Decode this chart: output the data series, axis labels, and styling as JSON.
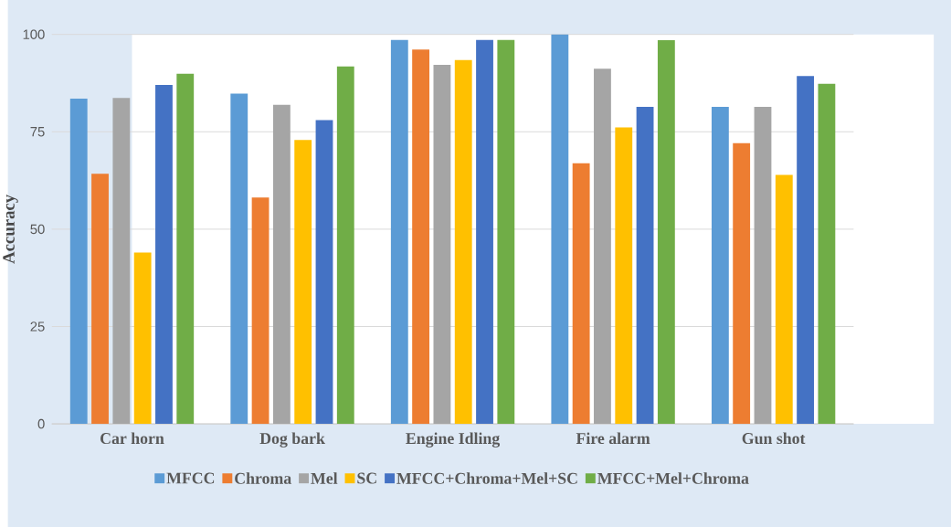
{
  "chart_data": {
    "type": "bar",
    "ylabel": "Accuracy",
    "categories": [
      "Car horn",
      "Dog bark",
      "Engine Idling",
      "Fire alarm",
      "Gun shot"
    ],
    "series": [
      {
        "name": "MFCC",
        "color": "#5b9bd5",
        "values": [
          83.5,
          84.8,
          98.6,
          100,
          81.4
        ]
      },
      {
        "name": "Chroma",
        "color": "#ed7d31",
        "values": [
          64.2,
          58.1,
          96.1,
          66.9,
          72.1
        ]
      },
      {
        "name": "Mel",
        "color": "#a5a5a5",
        "values": [
          83.7,
          81.9,
          92.2,
          91.2,
          81.4
        ]
      },
      {
        "name": "SC",
        "color": "#ffc000",
        "values": [
          44.0,
          72.9,
          93.4,
          76.1,
          63.9
        ]
      },
      {
        "name": "MFCC+Chroma+Mel+SC",
        "color": "#4472c4",
        "values": [
          87.0,
          78.0,
          98.6,
          81.4,
          89.3
        ]
      },
      {
        "name": "MFCC+Mel+Chroma",
        "color": "#70ad47",
        "values": [
          89.9,
          91.8,
          98.6,
          98.5,
          87.3
        ]
      }
    ],
    "ylim": [
      0,
      100
    ],
    "yticks": [
      0,
      25,
      50,
      75,
      100
    ],
    "grid": "y",
    "legend": "bottom"
  }
}
